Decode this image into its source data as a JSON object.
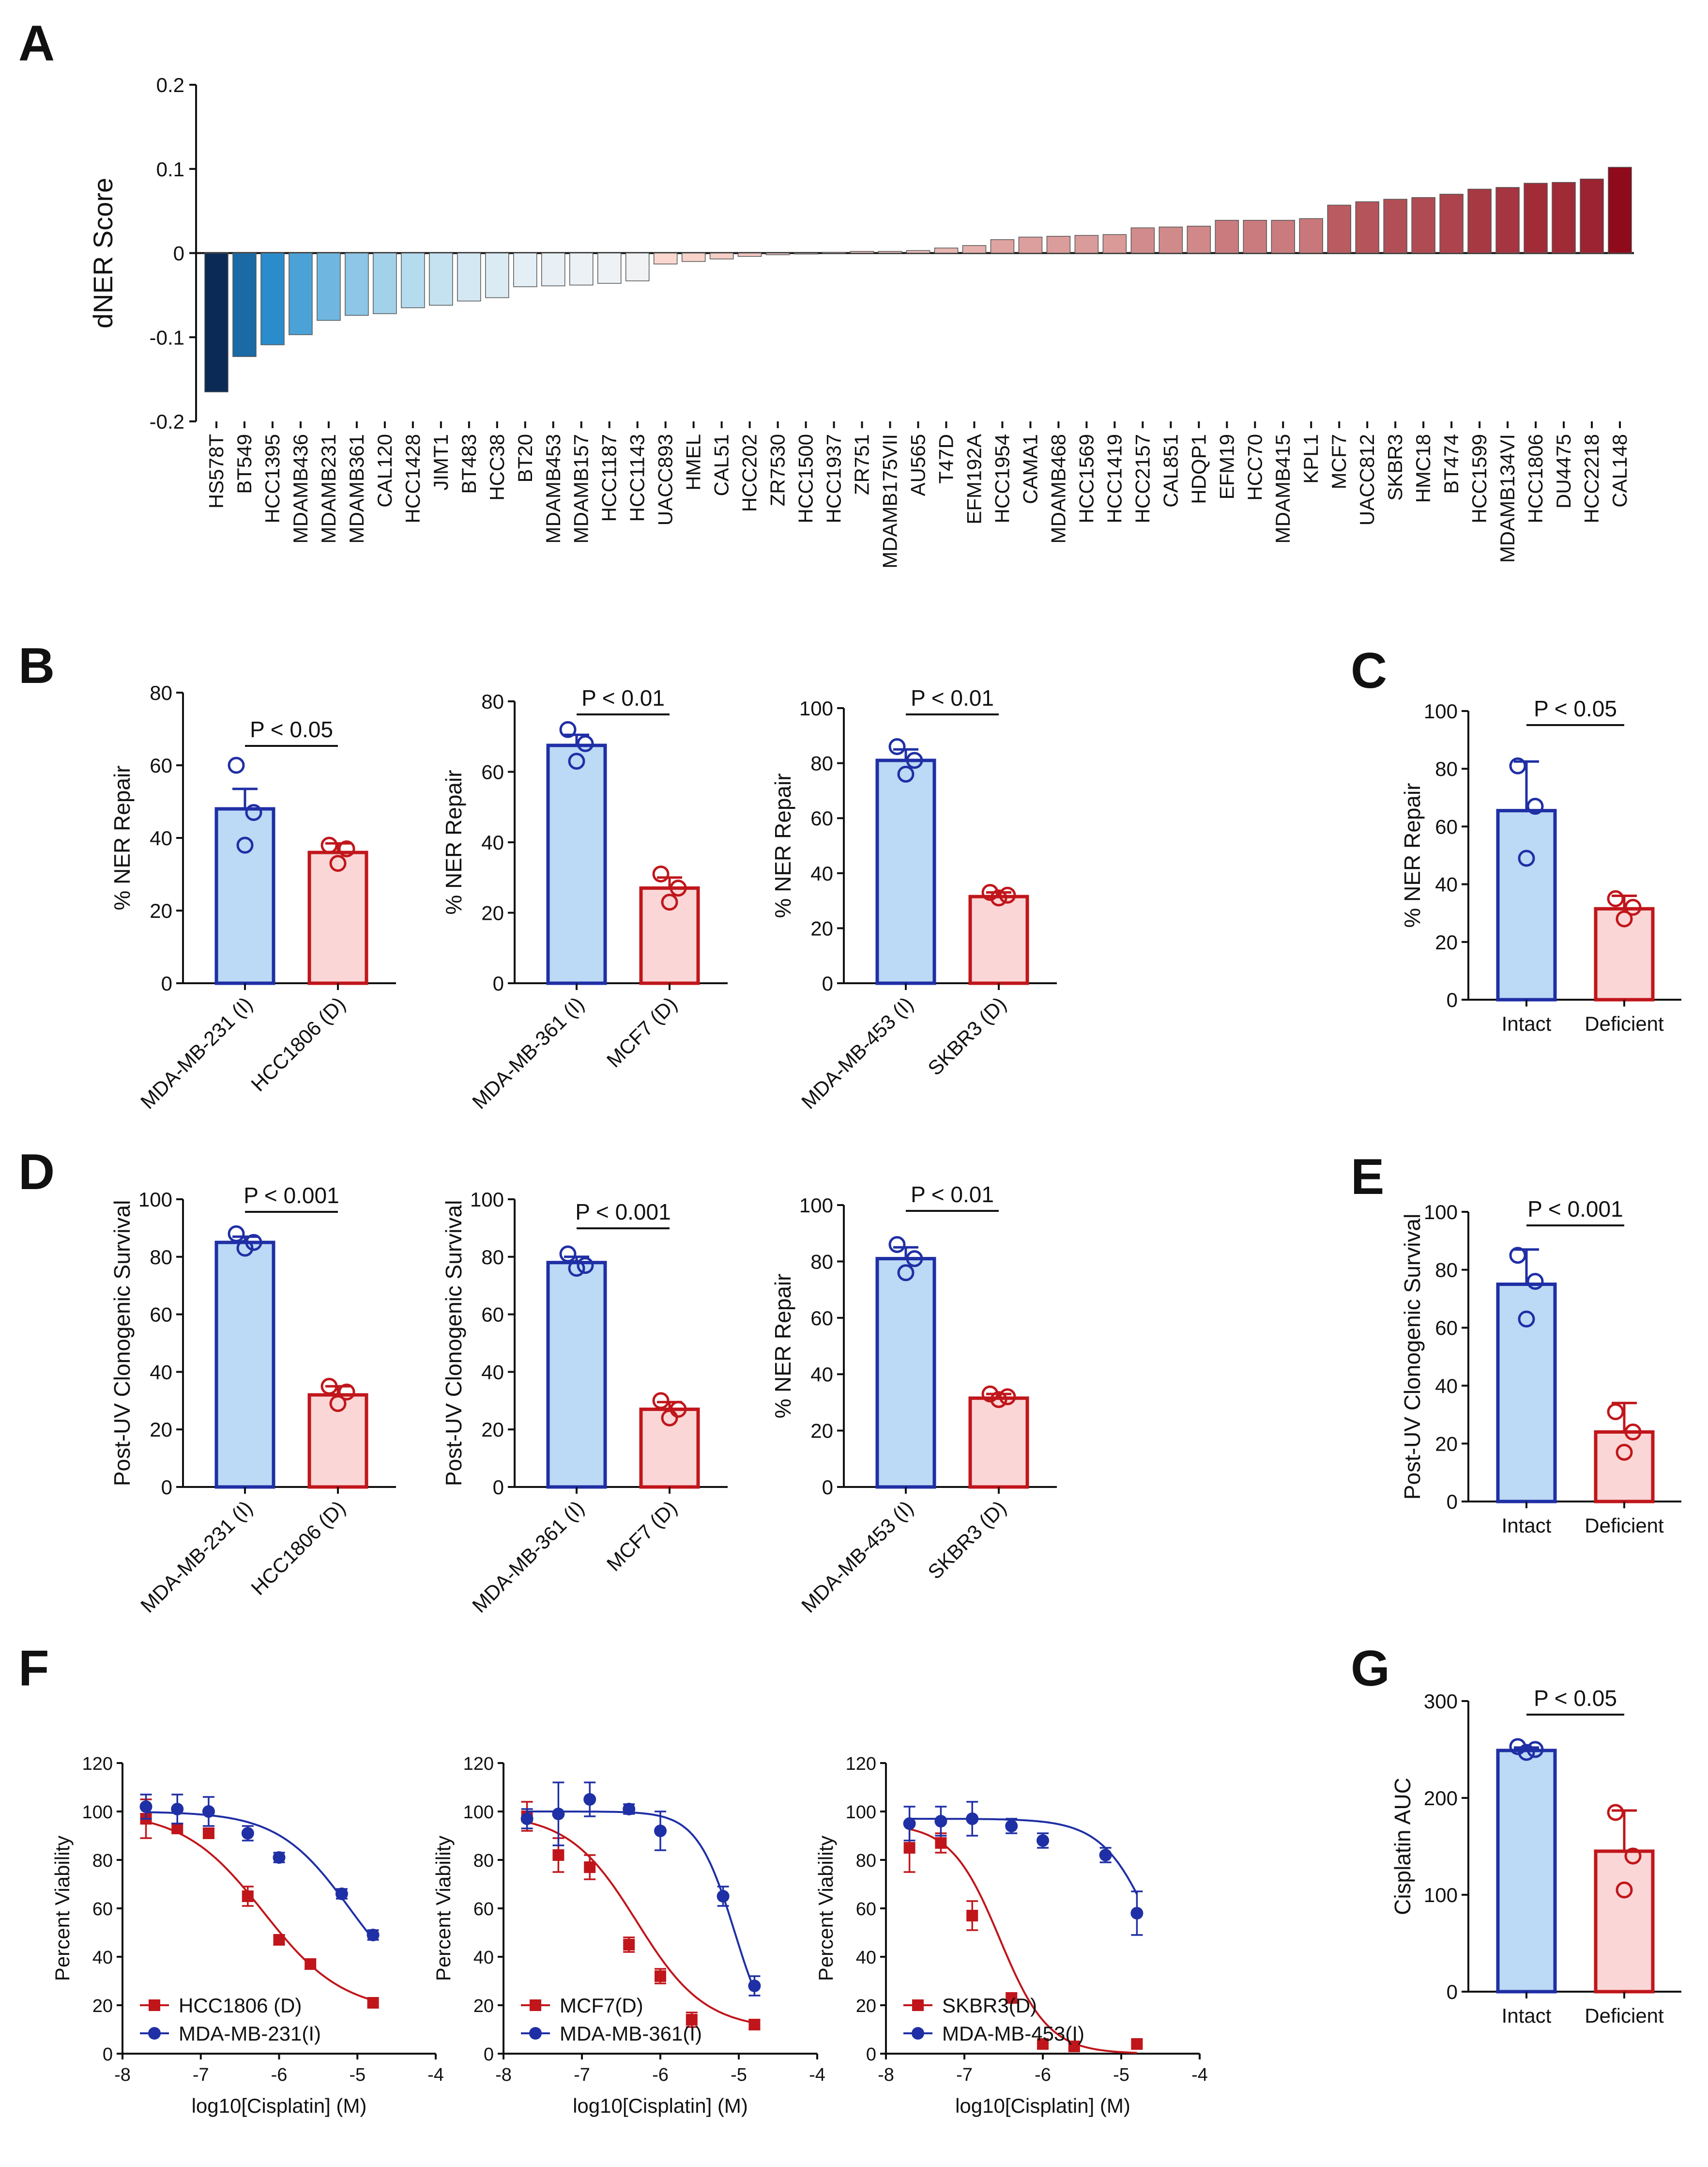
{
  "panel_labels": {
    "A": "A",
    "B": "B",
    "C": "C",
    "D": "D",
    "E": "E",
    "F": "F",
    "G": "G"
  },
  "colors": {
    "intact_stroke": "#1f2fa5",
    "intact_fill": "#bcd9f5",
    "deficient_stroke": "#c0161b",
    "deficient_fill": "#fbd6d6",
    "axis": "#111111"
  },
  "chart_data": [
    {
      "id": "A",
      "type": "bar",
      "title": "",
      "ylabel": "dNER Score",
      "xlabel": "",
      "ylim": [
        -0.2,
        0.2
      ],
      "yticks": [
        -0.2,
        -0.1,
        0,
        0.1,
        0.2
      ],
      "ytick_labels": [
        "-0.2",
        "-0.1",
        "0",
        "0.1",
        "0.2"
      ],
      "categories": [
        "HS578T",
        "BT549",
        "HCC1395",
        "MDAMB436",
        "MDAMB231",
        "MDAMB361",
        "CAL120",
        "HCC1428",
        "JIMT1",
        "BT483",
        "HCC38",
        "BT20",
        "MDAMB453",
        "MDAMB157",
        "HCC1187",
        "HCC1143",
        "UACC893",
        "HMEL",
        "CAL51",
        "HCC202",
        "ZR7530",
        "HCC1500",
        "HCC1937",
        "ZR751",
        "MDAMB175VII",
        "AU565",
        "T47D",
        "EFM192A",
        "HCC1954",
        "CAMA1",
        "MDAMB468",
        "HCC1569",
        "HCC1419",
        "HCC2157",
        "CAL851",
        "HDQP1",
        "EFM19",
        "HCC70",
        "MDAMB415",
        "KPL1",
        "MCF7",
        "UACC812",
        "SKBR3",
        "HMC18",
        "BT474",
        "HCC1599",
        "MDAMB134VI",
        "HCC1806",
        "DU4475",
        "HCC2218",
        "CAL148"
      ],
      "values": [
        -0.165,
        -0.123,
        -0.109,
        -0.097,
        -0.08,
        -0.074,
        -0.072,
        -0.065,
        -0.062,
        -0.057,
        -0.053,
        -0.04,
        -0.039,
        -0.038,
        -0.036,
        -0.033,
        -0.013,
        -0.01,
        -0.007,
        -0.004,
        -0.002,
        0.0,
        0.001,
        0.002,
        0.002,
        0.003,
        0.006,
        0.009,
        0.016,
        0.019,
        0.02,
        0.021,
        0.022,
        0.03,
        0.031,
        0.032,
        0.039,
        0.039,
        0.039,
        0.041,
        0.057,
        0.061,
        0.064,
        0.066,
        0.07,
        0.076,
        0.078,
        0.083,
        0.084,
        0.088,
        0.102
      ]
    },
    {
      "id": "B1",
      "type": "bar",
      "ylabel": "% NER Repair",
      "ylim": [
        0,
        80
      ],
      "yticks": [
        0,
        20,
        40,
        60,
        80
      ],
      "categories": [
        "MDA-MB-231 (I)",
        "HCC1806 (D)"
      ],
      "means": [
        48,
        36
      ],
      "errors": [
        5.5,
        2.5
      ],
      "points": [
        [
          60,
          47,
          38
        ],
        [
          38,
          37,
          33
        ]
      ],
      "pvalue": "P < 0.05"
    },
    {
      "id": "B2",
      "type": "bar",
      "ylabel": "% NER Repair",
      "ylim": [
        0,
        80
      ],
      "yticks": [
        0,
        20,
        40,
        60,
        80
      ],
      "categories": [
        "MDA-MB-361 (I)",
        "MCF7 (D)"
      ],
      "means": [
        67.5,
        27
      ],
      "errors": [
        3,
        3
      ],
      "points": [
        [
          72,
          68,
          63
        ],
        [
          31,
          27,
          23
        ]
      ],
      "pvalue": "P < 0.01"
    },
    {
      "id": "B3",
      "type": "bar",
      "ylabel": "% NER Repair",
      "ylim": [
        0,
        100
      ],
      "yticks": [
        0,
        20,
        40,
        60,
        80,
        100
      ],
      "categories": [
        "MDA-MB-453 (I)",
        "SKBR3 (D)"
      ],
      "means": [
        81,
        31.5
      ],
      "errors": [
        4,
        1.5
      ],
      "points": [
        [
          86,
          81,
          76
        ],
        [
          33,
          32,
          31
        ]
      ],
      "pvalue": "P < 0.01"
    },
    {
      "id": "C",
      "type": "bar",
      "ylabel": "% NER Repair",
      "ylim": [
        0,
        100
      ],
      "yticks": [
        0,
        20,
        40,
        60,
        80,
        100
      ],
      "categories": [
        "Intact",
        "Deficient"
      ],
      "means": [
        65.5,
        31.5
      ],
      "errors": [
        17,
        4.5
      ],
      "points": [
        [
          81,
          67,
          49
        ],
        [
          35,
          32,
          28
        ]
      ],
      "pvalue": "P < 0.05"
    },
    {
      "id": "D1",
      "type": "bar",
      "ylabel": "Post-UV Clonogenic Survival",
      "ylim": [
        0,
        100
      ],
      "yticks": [
        0,
        20,
        40,
        60,
        80,
        100
      ],
      "categories": [
        "MDA-MB-231 (I)",
        "HCC1806 (D)"
      ],
      "means": [
        85,
        32
      ],
      "errors": [
        2,
        3
      ],
      "points": [
        [
          88,
          85,
          83
        ],
        [
          35,
          33,
          29
        ]
      ],
      "pvalue": "P < 0.001"
    },
    {
      "id": "D2",
      "type": "bar",
      "ylabel": "Post-UV Clonogenic Survival",
      "ylim": [
        0,
        100
      ],
      "yticks": [
        0,
        20,
        40,
        60,
        80,
        100
      ],
      "categories": [
        "MDA-MB-361 (I)",
        "MCF7 (D)"
      ],
      "means": [
        78,
        27
      ],
      "errors": [
        2,
        2.5
      ],
      "points": [
        [
          81,
          77,
          76
        ],
        [
          30,
          27,
          24
        ]
      ],
      "pvalue": "P < 0.001"
    },
    {
      "id": "D3",
      "type": "bar",
      "ylabel": "% NER Repair",
      "ylim": [
        0,
        100
      ],
      "yticks": [
        0,
        20,
        40,
        60,
        80,
        100
      ],
      "categories": [
        "MDA-MB-453 (I)",
        "SKBR3 (D)"
      ],
      "means": [
        81,
        31.5
      ],
      "errors": [
        4,
        1.5
      ],
      "points": [
        [
          86,
          81,
          76
        ],
        [
          33,
          32,
          31
        ]
      ],
      "pvalue": "P < 0.01"
    },
    {
      "id": "E",
      "type": "bar",
      "ylabel": "Post-UV Clonogenic Survival",
      "ylim": [
        0,
        100
      ],
      "yticks": [
        0,
        20,
        40,
        60,
        80,
        100
      ],
      "categories": [
        "Intact",
        "Deficient"
      ],
      "means": [
        75,
        24
      ],
      "errors": [
        12,
        10
      ],
      "points": [
        [
          85,
          76,
          63
        ],
        [
          31,
          24,
          17
        ]
      ],
      "pvalue": "P < 0.001"
    },
    {
      "id": "F1",
      "type": "line",
      "ylabel": "Percent Viability",
      "xlabel": "log10[Cisplatin] (M)",
      "xlim": [
        -8,
        -4
      ],
      "ylim": [
        0,
        120
      ],
      "xticks": [
        -8,
        -7,
        -6,
        -5,
        -4
      ],
      "yticks": [
        0,
        20,
        40,
        60,
        80,
        100,
        120
      ],
      "x": [
        -7.7,
        -7.3,
        -6.9,
        -6.4,
        -6.0,
        -5.6,
        -5.2,
        -4.8
      ],
      "series": [
        {
          "name": "HCC1806 (D)",
          "group": "D",
          "marker": "square",
          "y": [
            97,
            93,
            91,
            65,
            47,
            37,
            null,
            21
          ],
          "err": [
            8,
            2,
            2,
            4,
            2,
            2,
            0,
            2
          ],
          "fit": {
            "top": 100,
            "bottom": 17,
            "logIC50": -6.2,
            "hill": 0.85
          }
        },
        {
          "name": "MDA-MB-231(I)",
          "group": "I",
          "marker": "circle",
          "y": [
            102,
            101,
            100,
            91,
            81,
            null,
            66,
            49
          ],
          "err": [
            5,
            6,
            6,
            3,
            2,
            0,
            2,
            2
          ],
          "fit": {
            "top": 100,
            "bottom": 20,
            "logIC50": -5.1,
            "hill": 0.95
          }
        }
      ]
    },
    {
      "id": "F2",
      "type": "line",
      "ylabel": "Percent Viability",
      "xlabel": "log10[Cisplatin] (M)",
      "xlim": [
        -8,
        -4
      ],
      "ylim": [
        0,
        120
      ],
      "xticks": [
        -8,
        -7,
        -6,
        -5,
        -4
      ],
      "yticks": [
        0,
        20,
        40,
        60,
        80,
        100,
        120
      ],
      "x": [
        -7.7,
        -7.3,
        -6.9,
        -6.4,
        -6.0,
        -5.6,
        -5.2,
        -4.8
      ],
      "series": [
        {
          "name": "MCF7(D)",
          "group": "D",
          "marker": "square",
          "y": [
            98,
            82,
            77,
            45,
            32,
            14,
            null,
            12
          ],
          "err": [
            6,
            7,
            5,
            3,
            3,
            3,
            0,
            2
          ],
          "fit": {
            "top": 99,
            "bottom": 10,
            "logIC50": -6.3,
            "hill": 1.0
          }
        },
        {
          "name": "MDA-MB-361(I)",
          "group": "I",
          "marker": "circle",
          "y": [
            97,
            99,
            105,
            101,
            92,
            null,
            65,
            28
          ],
          "err": [
            4,
            13,
            7,
            2,
            8,
            0,
            4,
            4
          ],
          "fit": {
            "top": 100,
            "bottom": 0,
            "logIC50": -5.05,
            "hill": 1.8
          }
        }
      ]
    },
    {
      "id": "F3",
      "type": "line",
      "ylabel": "Percent Viability",
      "xlabel": "log10[Cisplatin] (M)",
      "xlim": [
        -8,
        -4
      ],
      "ylim": [
        0,
        120
      ],
      "xticks": [
        -8,
        -7,
        -6,
        -5,
        -4
      ],
      "yticks": [
        0,
        20,
        40,
        60,
        80,
        100,
        120
      ],
      "x": [
        -7.7,
        -7.3,
        -6.9,
        -6.4,
        -6.0,
        -5.6,
        -5.2,
        -4.8
      ],
      "series": [
        {
          "name": "SKBR3(D)",
          "group": "D",
          "marker": "square",
          "y": [
            85,
            87,
            57,
            23,
            4,
            3,
            null,
            4
          ],
          "err": [
            10,
            4,
            6,
            2,
            1,
            1,
            0,
            1
          ],
          "fit": {
            "top": 95,
            "bottom": 0,
            "logIC50": -6.55,
            "hill": 1.4
          }
        },
        {
          "name": "MDA-MB-453(I)",
          "group": "I",
          "marker": "circle",
          "y": [
            95,
            96,
            97,
            94,
            88,
            null,
            82,
            58
          ],
          "err": [
            7,
            6,
            7,
            3,
            3,
            0,
            3,
            9
          ],
          "fit": {
            "top": 97,
            "bottom": 0,
            "logIC50": -4.55,
            "hill": 1.3
          }
        }
      ]
    },
    {
      "id": "G",
      "type": "bar",
      "ylabel": "Cisplatin AUC",
      "ylim": [
        0,
        300
      ],
      "yticks": [
        0,
        100,
        200,
        300
      ],
      "categories": [
        "Intact",
        "Deficient"
      ],
      "means": [
        249,
        145
      ],
      "errors": [
        3,
        42
      ],
      "points": [
        [
          253,
          250,
          247
        ],
        [
          185,
          140,
          105
        ]
      ],
      "pvalue": "P < 0.05"
    }
  ]
}
